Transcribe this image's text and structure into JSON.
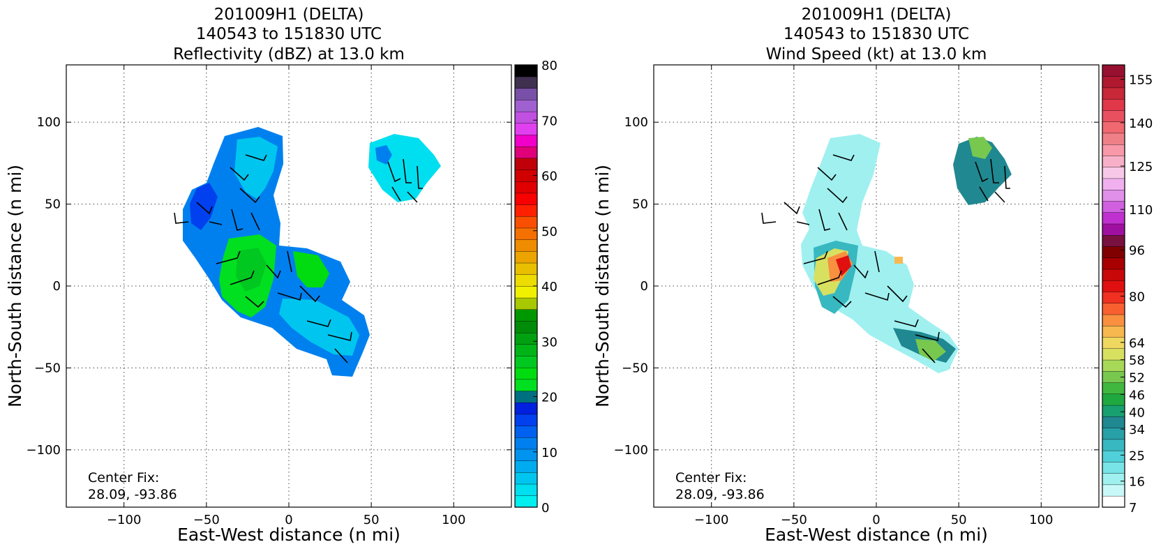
{
  "panels": [
    {
      "title_lines": [
        "201009H1 (DELTA)",
        "140543 to 151830 UTC",
        "Reflectivity (dBZ) at 13.0 km"
      ],
      "xlabel": "East-West distance (n mi)",
      "ylabel": "North-South distance (n mi)",
      "center_fix_label": "Center Fix:",
      "center_fix_value": "28.09, -93.86",
      "colorbar": {
        "min": 0,
        "max": 80,
        "tick_labels": [
          "0",
          "10",
          "20",
          "30",
          "40",
          "50",
          "60",
          "70",
          "80"
        ],
        "tick_values": [
          0,
          10,
          20,
          30,
          40,
          50,
          60,
          70,
          80
        ],
        "colors": [
          "#00efef",
          "#00dfef",
          "#00c6ef",
          "#00acef",
          "#0094ef",
          "#0080ef",
          "#0060ef",
          "#0040ef",
          "#0020df",
          "#007080",
          "#00e020",
          "#00dc10",
          "#00c820",
          "#00b418",
          "#00a010",
          "#008c08",
          "#009800",
          "#a8c800",
          "#f0f000",
          "#ecdc00",
          "#e8c000",
          "#eca400",
          "#f08c00",
          "#f47000",
          "#f85000",
          "#ff2000",
          "#f80000",
          "#e00000",
          "#d00000",
          "#c00008",
          "#e0007a",
          "#f000c8",
          "#e040f0",
          "#c050e0",
          "#a060d0",
          "#7850a8",
          "#403050",
          "#000000"
        ]
      }
    },
    {
      "title_lines": [
        "201009H1 (DELTA)",
        "140543 to 151830 UTC",
        "Wind Speed (kt) at 13.0 km"
      ],
      "xlabel": "East-West distance (n mi)",
      "ylabel": "North-South distance (n mi)",
      "center_fix_label": "Center Fix:",
      "center_fix_value": "28.09, -93.86",
      "colorbar": {
        "min": 7,
        "max": 160,
        "tick_labels": [
          "7",
          "16",
          "25",
          "34",
          "40",
          "46",
          "52",
          "58",
          "64",
          "80",
          "96",
          "110",
          "125",
          "140",
          "155"
        ],
        "tick_values": [
          7,
          16,
          25,
          34,
          40,
          46,
          52,
          58,
          64,
          80,
          96,
          110,
          125,
          140,
          155
        ],
        "colors": [
          "#ffffff",
          "#c8f8f8",
          "#a0f0f0",
          "#78e4e8",
          "#50d0d8",
          "#38b8c0",
          "#28a0a8",
          "#208890",
          "#18a070",
          "#20a840",
          "#40b840",
          "#78c850",
          "#a8d858",
          "#d8e060",
          "#f0d860",
          "#f8b850",
          "#f89040",
          "#f86030",
          "#f03020",
          "#e01010",
          "#c80808",
          "#a80000",
          "#800000",
          "#781040",
          "#a010a0",
          "#c030d0",
          "#d060e0",
          "#e090e8",
          "#f0b0f0",
          "#f8c8e8",
          "#f8b0c8",
          "#f898a8",
          "#f08088",
          "#f06870",
          "#e85060",
          "#e03848",
          "#c82838",
          "#b01830",
          "#981030"
        ]
      }
    }
  ],
  "chart_data": [
    {
      "type": "heatmap",
      "title": "201009H1 (DELTA) 140543 to 151830 UTC Reflectivity (dBZ) at 13.0 km",
      "xlabel": "East-West distance (n mi)",
      "ylabel": "North-South distance (n mi)",
      "xlim": [
        -135,
        135
      ],
      "ylim": [
        -135,
        135
      ],
      "x_ticks": [
        -100,
        -50,
        0,
        50,
        100
      ],
      "y_ticks": [
        -100,
        -50,
        0,
        50,
        100
      ],
      "x_tick_labels": [
        "−100",
        "−50",
        "0",
        "50",
        "100"
      ],
      "y_tick_labels": [
        "−100",
        "−50",
        "0",
        "50",
        "100"
      ],
      "grid": true,
      "colorbar_label_values": [
        0,
        10,
        20,
        30,
        40,
        50,
        60,
        70,
        80
      ],
      "annotations": [
        "Center Fix:",
        "28.09, -93.86"
      ]
    },
    {
      "type": "heatmap",
      "title": "201009H1 (DELTA) 140543 to 151830 UTC Wind Speed (kt) at 13.0 km",
      "xlabel": "East-West distance (n mi)",
      "ylabel": "North-South distance (n mi)",
      "xlim": [
        -135,
        135
      ],
      "ylim": [
        -135,
        135
      ],
      "x_ticks": [
        -100,
        -50,
        0,
        50,
        100
      ],
      "y_ticks": [
        -100,
        -50,
        0,
        50,
        100
      ],
      "x_tick_labels": [
        "−100",
        "−50",
        "0",
        "50",
        "100"
      ],
      "y_tick_labels": [
        "−100",
        "−50",
        "0",
        "50",
        "100"
      ],
      "grid": true,
      "colorbar_label_values": [
        7,
        16,
        25,
        34,
        40,
        46,
        52,
        58,
        64,
        80,
        96,
        110,
        125,
        140,
        155
      ],
      "annotations": [
        "Center Fix:",
        "28.09, -93.86"
      ]
    }
  ]
}
